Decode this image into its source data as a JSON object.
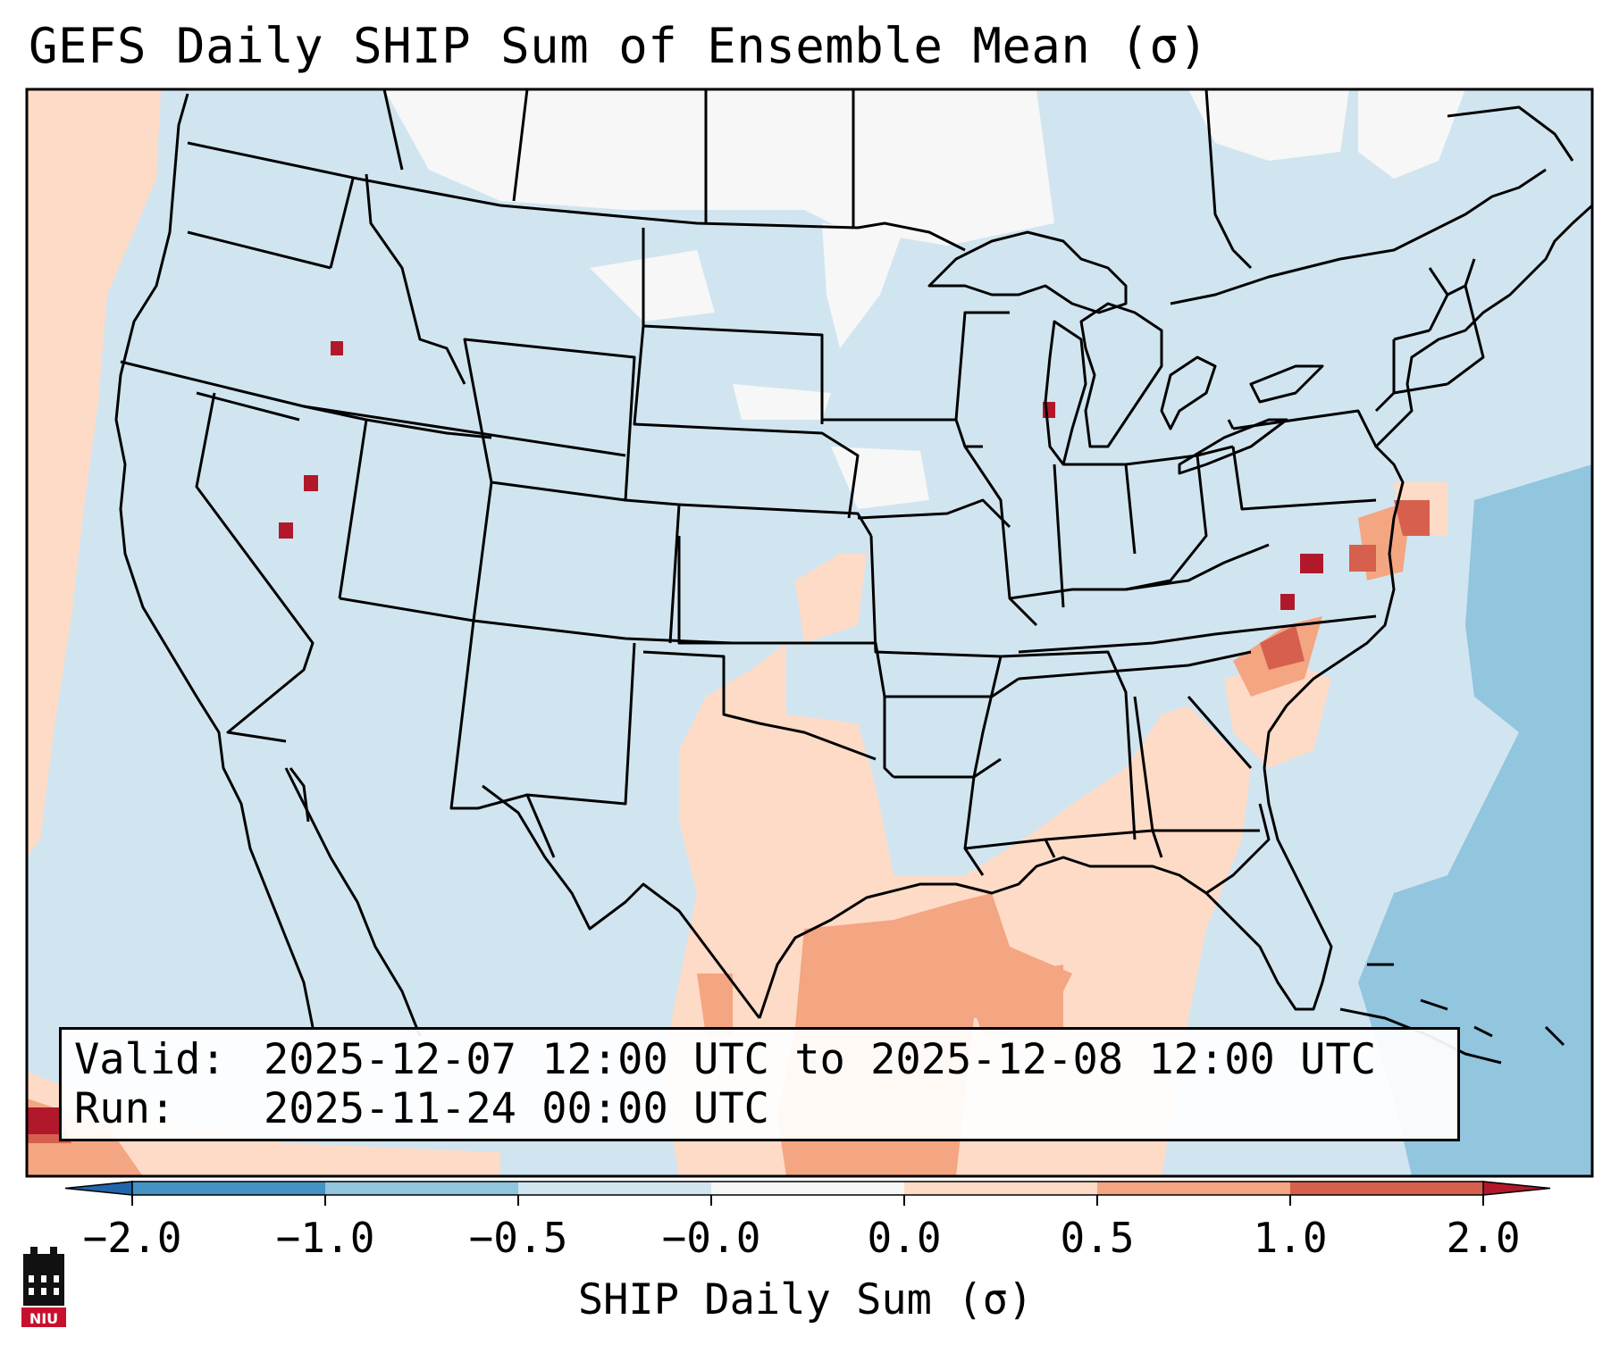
{
  "title": "GEFS Daily SHIP Sum of Ensemble Mean (σ)",
  "info": {
    "valid_label": "Valid:",
    "valid_value": "2025-12-07 12:00 UTC to 2025-12-08 12:00 UTC",
    "run_label": "Run:",
    "run_value": "2025-11-24 00:00 UTC"
  },
  "colorbar": {
    "label": "SHIP Daily Sum (σ)",
    "bounds": [
      -2.0,
      -1.0,
      -0.5,
      -0.0,
      0.0,
      0.5,
      1.0,
      2.0
    ],
    "tick_labels": [
      "−2.0",
      "−1.0",
      "−0.5",
      "−0.0",
      "0.0",
      "0.5",
      "1.0",
      "2.0"
    ],
    "colors": [
      "#4393c3",
      "#92c5de",
      "#d1e5f0",
      "#f7f7f7",
      "#fddbc7",
      "#f4a582",
      "#d6604d"
    ],
    "extend_low_color": "#2166ac",
    "extend_high_color": "#b2182b"
  },
  "map": {
    "background_color": "#d1e5f0",
    "border_color": "#000000",
    "layers": [
      "coastlines",
      "state-borders",
      "country-borders"
    ],
    "shaded_regions": [
      {
        "name": "west-pacific-coast-positive",
        "level": "0.0 to 0.5",
        "color": "#fddbc7"
      },
      {
        "name": "texas-gulf-positive",
        "level": "0.0 to 0.5",
        "color": "#fddbc7"
      },
      {
        "name": "gulf-of-mexico-enhanced",
        "level": "0.5 to 1.0",
        "color": "#f4a582"
      },
      {
        "name": "mid-atlantic-enhanced",
        "level": "1.0 to 2.0",
        "color": "#d6604d"
      },
      {
        "name": "western-atlantic-negative",
        "level": "-1.0 to -0.5",
        "color": "#92c5de"
      },
      {
        "name": "northern-plains-near-zero",
        "level": "-0.0 to 0.0",
        "color": "#f7f7f7"
      }
    ]
  },
  "logo": {
    "text": "NIU",
    "icon": "niu-logo-icon"
  }
}
